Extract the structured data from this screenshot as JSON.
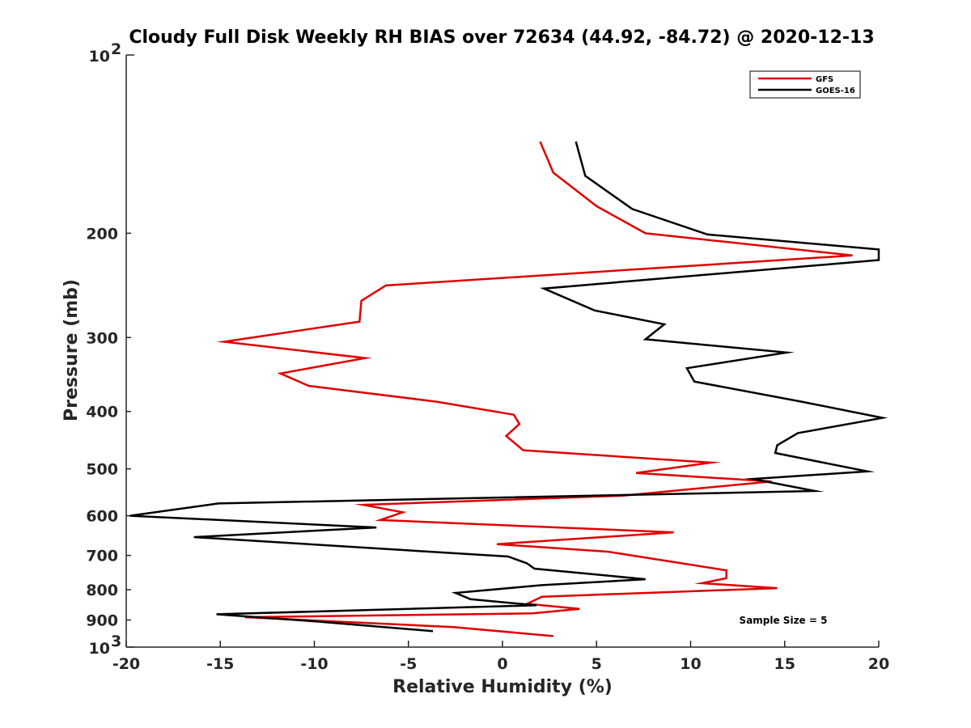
{
  "chart_data": {
    "type": "line",
    "title": "Cloudy Full Disk Weekly RH BIAS over 72634 (44.92, -84.72) @ 2020-12-13",
    "xlabel": "Relative Humidity (%)",
    "ylabel": "Pressure (mb)",
    "xlim": [
      -20,
      20
    ],
    "ylim": [
      100,
      1000
    ],
    "yscale": "log",
    "y_reversed": true,
    "xticks": [
      -20,
      -15,
      -10,
      -5,
      0,
      5,
      10,
      15,
      20
    ],
    "xtick_labels": [
      "-20",
      "-15",
      "-10",
      "-5",
      "0",
      "5",
      "10",
      "15",
      "20"
    ],
    "yticks": [
      200,
      300,
      400,
      500,
      600,
      700,
      800,
      900
    ],
    "ytick_labels": [
      "200",
      "300",
      "400",
      "500",
      "600",
      "700",
      "800",
      "900"
    ],
    "ytick_ends": [
      {
        "value": 100,
        "base": "10",
        "exp": "2"
      },
      {
        "value": 1000,
        "base": "10",
        "exp": "3"
      }
    ],
    "grid": false,
    "legend_position": "top-right",
    "annotation": "Sample Size = 5",
    "series": [
      {
        "name": "GFS",
        "color": "#e00000",
        "points": [
          [
            2.0,
            140
          ],
          [
            2.7,
            158
          ],
          [
            5.0,
            180
          ],
          [
            7.6,
            200
          ],
          [
            18.6,
            218
          ],
          [
            -6.2,
            245
          ],
          [
            -7.5,
            260
          ],
          [
            -7.6,
            282
          ],
          [
            -14.8,
            305
          ],
          [
            -7.3,
            325
          ],
          [
            -11.8,
            345
          ],
          [
            -10.3,
            362
          ],
          [
            -3.5,
            385
          ],
          [
            0.6,
            405
          ],
          [
            0.9,
            420
          ],
          [
            0.2,
            440
          ],
          [
            1.1,
            465
          ],
          [
            11.1,
            488
          ],
          [
            7.1,
            508
          ],
          [
            14.3,
            525
          ],
          [
            6.4,
            555
          ],
          [
            -7.4,
            575
          ],
          [
            -5.3,
            592
          ],
          [
            -6.5,
            610
          ],
          [
            9.1,
            640
          ],
          [
            -0.3,
            670
          ],
          [
            5.6,
            690
          ],
          [
            11.9,
            742
          ],
          [
            11.9,
            765
          ],
          [
            10.6,
            780
          ],
          [
            14.6,
            795
          ],
          [
            2.1,
            822
          ],
          [
            1.3,
            845
          ],
          [
            4.1,
            862
          ],
          [
            1.6,
            877
          ],
          [
            -13.7,
            890
          ],
          [
            -2.6,
            925
          ],
          [
            2.7,
            958
          ]
        ]
      },
      {
        "name": "GOES-16",
        "color": "#000000",
        "points": [
          [
            3.9,
            140
          ],
          [
            4.4,
            160
          ],
          [
            6.9,
            182
          ],
          [
            10.9,
            201
          ],
          [
            20.0,
            213
          ],
          [
            20.0,
            222
          ],
          [
            2.2,
            248
          ],
          [
            4.9,
            270
          ],
          [
            8.6,
            285
          ],
          [
            7.6,
            302
          ],
          [
            15.1,
            318
          ],
          [
            9.8,
            338
          ],
          [
            10.2,
            356
          ],
          [
            15.9,
            385
          ],
          [
            20.2,
            410
          ],
          [
            15.7,
            435
          ],
          [
            14.6,
            456
          ],
          [
            14.5,
            470
          ],
          [
            19.4,
            505
          ],
          [
            13.3,
            520
          ],
          [
            16.6,
            545
          ],
          [
            -15.1,
            572
          ],
          [
            -19.8,
            600
          ],
          [
            -6.7,
            628
          ],
          [
            -16.4,
            652
          ],
          [
            0.3,
            703
          ],
          [
            1.3,
            722
          ],
          [
            1.7,
            737
          ],
          [
            7.6,
            768
          ],
          [
            2.1,
            786
          ],
          [
            -2.5,
            810
          ],
          [
            -1.7,
            830
          ],
          [
            1.8,
            850
          ],
          [
            -15.2,
            880
          ],
          [
            -9.9,
            905
          ],
          [
            -3.7,
            940
          ]
        ]
      }
    ]
  }
}
